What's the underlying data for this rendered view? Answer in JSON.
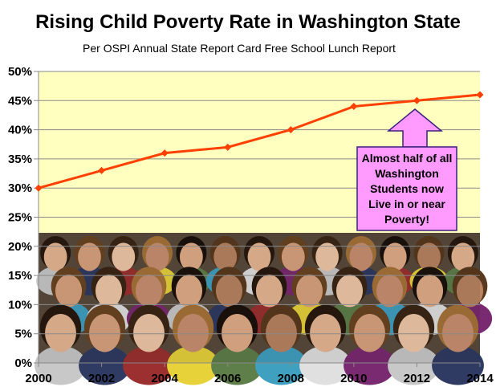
{
  "chart_data": {
    "type": "line",
    "title": "Rising Child Poverty Rate in Washington State",
    "subtitle": "Per OSPI Annual State Report Card Free School Lunch Report",
    "x": [
      2000,
      2002,
      2004,
      2006,
      2008,
      2010,
      2012,
      2014
    ],
    "series": [
      {
        "values": [
          30,
          33,
          36,
          37,
          40,
          44,
          45,
          46
        ],
        "color": "#ff4000"
      }
    ],
    "xlim": [
      2000,
      2014
    ],
    "ylim": [
      0,
      50
    ],
    "y_ticks": [
      "0%",
      "5%",
      "10%",
      "15%",
      "20%",
      "25%",
      "30%",
      "35%",
      "40%",
      "45%",
      "50%"
    ],
    "x_ticks": [
      "2000",
      "2002",
      "2004",
      "2006",
      "2008",
      "2010",
      "2012",
      "2014"
    ],
    "grid": true,
    "plot_background": "#ffffc0",
    "background_image": "crowd photo of students",
    "annotation": {
      "text": "Almost half of all Washington Students now Live in or near Poverty!",
      "fill": "#ff9bff",
      "points_to_x": 2012
    }
  }
}
